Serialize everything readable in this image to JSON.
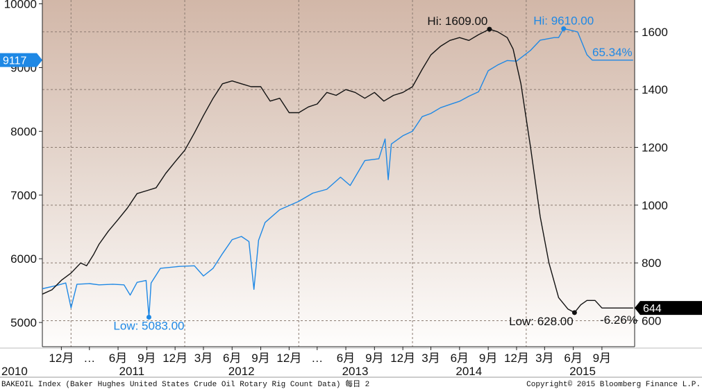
{
  "chart_data": {
    "type": "line",
    "title": "",
    "left_axis": {
      "range": [
        4620,
        10060
      ],
      "ticks": [
        5000,
        6000,
        7000,
        8000,
        9000,
        10000
      ]
    },
    "right_axis": {
      "range": [
        510,
        1710
      ],
      "ticks": [
        600,
        800,
        1000,
        1200,
        1400,
        1600
      ]
    },
    "x_range": [
      "2010-10-01",
      "2015-12-15"
    ],
    "x_month_labels": [
      {
        "date": "2010-12-01",
        "label": "12月"
      },
      {
        "date": "2011-03-01",
        "label": "…"
      },
      {
        "date": "2011-06-01",
        "label": "6月"
      },
      {
        "date": "2011-09-01",
        "label": "9月"
      },
      {
        "date": "2011-12-01",
        "label": "12月"
      },
      {
        "date": "2012-03-01",
        "label": "3月"
      },
      {
        "date": "2012-06-01",
        "label": "6月"
      },
      {
        "date": "2012-09-01",
        "label": "9月"
      },
      {
        "date": "2012-12-01",
        "label": "12月"
      },
      {
        "date": "2013-03-01",
        "label": "…"
      },
      {
        "date": "2013-06-01",
        "label": "6月"
      },
      {
        "date": "2013-09-01",
        "label": "9月"
      },
      {
        "date": "2013-12-01",
        "label": "12月"
      },
      {
        "date": "2014-03-01",
        "label": "3月"
      },
      {
        "date": "2014-06-01",
        "label": "6月"
      },
      {
        "date": "2014-09-01",
        "label": "9月"
      },
      {
        "date": "2014-12-01",
        "label": "12月"
      },
      {
        "date": "2015-03-01",
        "label": "3月"
      },
      {
        "date": "2015-06-01",
        "label": "6月"
      },
      {
        "date": "2015-09-01",
        "label": "9月"
      }
    ],
    "x_year_labels": [
      {
        "date": "2010-10-01",
        "label": "2010"
      },
      {
        "date": "2011-07-15",
        "label": "2011"
      },
      {
        "date": "2012-07-01",
        "label": "2012"
      },
      {
        "date": "2013-07-01",
        "label": "2013"
      },
      {
        "date": "2014-07-01",
        "label": "2014"
      },
      {
        "date": "2015-07-01",
        "label": "2015"
      }
    ],
    "grid": true,
    "series": [
      {
        "axis": "left",
        "color": "#1e88e5",
        "points": [
          [
            "2010-10-01",
            5530
          ],
          [
            "2010-11-15",
            5580
          ],
          [
            "2010-12-15",
            5620
          ],
          [
            "2011-01-01",
            5230
          ],
          [
            "2011-01-20",
            5600
          ],
          [
            "2011-03-01",
            5610
          ],
          [
            "2011-04-01",
            5590
          ],
          [
            "2011-05-15",
            5600
          ],
          [
            "2011-06-20",
            5590
          ],
          [
            "2011-07-10",
            5430
          ],
          [
            "2011-08-01",
            5630
          ],
          [
            "2011-08-30",
            5660
          ],
          [
            "2011-09-08",
            5083
          ],
          [
            "2011-09-15",
            5620
          ],
          [
            "2011-10-15",
            5850
          ],
          [
            "2011-12-15",
            5880
          ],
          [
            "2012-02-01",
            5890
          ],
          [
            "2012-03-01",
            5730
          ],
          [
            "2012-04-01",
            5850
          ],
          [
            "2012-05-01",
            6080
          ],
          [
            "2012-06-01",
            6300
          ],
          [
            "2012-07-01",
            6350
          ],
          [
            "2012-07-25",
            6270
          ],
          [
            "2012-08-10",
            5520
          ],
          [
            "2012-08-25",
            6290
          ],
          [
            "2012-09-15",
            6570
          ],
          [
            "2012-11-01",
            6770
          ],
          [
            "2013-01-01",
            6900
          ],
          [
            "2013-02-15",
            7030
          ],
          [
            "2013-04-01",
            7090
          ],
          [
            "2013-05-15",
            7280
          ],
          [
            "2013-06-15",
            7150
          ],
          [
            "2013-08-01",
            7540
          ],
          [
            "2013-09-15",
            7570
          ],
          [
            "2013-10-05",
            7880
          ],
          [
            "2013-10-15",
            7240
          ],
          [
            "2013-10-25",
            7800
          ],
          [
            "2013-12-01",
            7930
          ],
          [
            "2014-01-01",
            8000
          ],
          [
            "2014-02-01",
            8230
          ],
          [
            "2014-03-01",
            8280
          ],
          [
            "2014-04-01",
            8370
          ],
          [
            "2014-05-01",
            8420
          ],
          [
            "2014-06-01",
            8470
          ],
          [
            "2014-07-01",
            8550
          ],
          [
            "2014-08-01",
            8620
          ],
          [
            "2014-09-01",
            8950
          ],
          [
            "2014-10-01",
            9040
          ],
          [
            "2014-11-01",
            9110
          ],
          [
            "2014-12-01",
            9100
          ],
          [
            "2015-01-15",
            9270
          ],
          [
            "2015-02-15",
            9430
          ],
          [
            "2015-04-01",
            9470
          ],
          [
            "2015-04-15",
            9470
          ],
          [
            "2015-05-01",
            9610
          ],
          [
            "2015-05-20",
            9590
          ],
          [
            "2015-06-15",
            9560
          ],
          [
            "2015-07-15",
            9200
          ],
          [
            "2015-08-01",
            9117
          ],
          [
            "2015-12-10",
            9117
          ]
        ]
      },
      {
        "axis": "right",
        "color": "#111111",
        "points": [
          [
            "2010-10-01",
            692
          ],
          [
            "2010-11-01",
            707
          ],
          [
            "2010-12-01",
            740
          ],
          [
            "2011-01-01",
            765
          ],
          [
            "2011-02-01",
            800
          ],
          [
            "2011-02-20",
            790
          ],
          [
            "2011-03-15",
            830
          ],
          [
            "2011-04-01",
            865
          ],
          [
            "2011-05-01",
            910
          ],
          [
            "2011-06-01",
            950
          ],
          [
            "2011-07-01",
            990
          ],
          [
            "2011-08-01",
            1040
          ],
          [
            "2011-09-01",
            1050
          ],
          [
            "2011-10-01",
            1060
          ],
          [
            "2011-11-01",
            1110
          ],
          [
            "2011-12-01",
            1150
          ],
          [
            "2012-01-01",
            1190
          ],
          [
            "2012-02-01",
            1250
          ],
          [
            "2012-03-01",
            1310
          ],
          [
            "2012-04-01",
            1370
          ],
          [
            "2012-05-01",
            1420
          ],
          [
            "2012-06-01",
            1430
          ],
          [
            "2012-07-01",
            1420
          ],
          [
            "2012-08-01",
            1410
          ],
          [
            "2012-09-01",
            1410
          ],
          [
            "2012-10-01",
            1360
          ],
          [
            "2012-11-01",
            1370
          ],
          [
            "2012-12-01",
            1320
          ],
          [
            "2013-01-01",
            1320
          ],
          [
            "2013-02-01",
            1340
          ],
          [
            "2013-03-01",
            1350
          ],
          [
            "2013-04-01",
            1390
          ],
          [
            "2013-05-01",
            1380
          ],
          [
            "2013-06-01",
            1400
          ],
          [
            "2013-07-01",
            1390
          ],
          [
            "2013-08-01",
            1370
          ],
          [
            "2013-09-01",
            1390
          ],
          [
            "2013-10-01",
            1360
          ],
          [
            "2013-11-01",
            1380
          ],
          [
            "2013-12-01",
            1390
          ],
          [
            "2014-01-01",
            1410
          ],
          [
            "2014-02-01",
            1470
          ],
          [
            "2014-03-01",
            1520
          ],
          [
            "2014-04-01",
            1550
          ],
          [
            "2014-05-01",
            1570
          ],
          [
            "2014-06-01",
            1580
          ],
          [
            "2014-07-01",
            1570
          ],
          [
            "2014-08-01",
            1590
          ],
          [
            "2014-09-05",
            1609
          ],
          [
            "2014-10-01",
            1600
          ],
          [
            "2014-11-01",
            1580
          ],
          [
            "2014-11-20",
            1540
          ],
          [
            "2014-12-15",
            1420
          ],
          [
            "2015-01-15",
            1200
          ],
          [
            "2015-02-15",
            960
          ],
          [
            "2015-03-15",
            800
          ],
          [
            "2015-04-15",
            680
          ],
          [
            "2015-05-15",
            640
          ],
          [
            "2015-06-05",
            628
          ],
          [
            "2015-06-25",
            655
          ],
          [
            "2015-07-15",
            670
          ],
          [
            "2015-08-10",
            670
          ],
          [
            "2015-09-01",
            644
          ],
          [
            "2015-12-10",
            644
          ]
        ]
      }
    ],
    "annotations": [
      {
        "text": "Hi: 1609.00",
        "color": "black",
        "axis": "right",
        "date": "2014-09-05",
        "value": 1609
      },
      {
        "text": "Hi: 9610.00",
        "color": "blue",
        "axis": "left",
        "date": "2015-05-01",
        "value": 9610
      },
      {
        "text": "65.34%",
        "color": "blue"
      },
      {
        "text": "Low: 5083.00",
        "color": "blue",
        "axis": "left",
        "date": "2011-09-08",
        "value": 5083
      },
      {
        "text": "Low: 628.00",
        "color": "black",
        "axis": "right",
        "date": "2015-06-05",
        "value": 628
      },
      {
        "text": "-6.26%",
        "color": "black"
      }
    ],
    "last_value_tags": [
      {
        "text": "9117",
        "axis": "left",
        "value": 9117,
        "color": "#1e88e5"
      },
      {
        "text": "644",
        "axis": "right",
        "value": 644,
        "color": "#000000"
      }
    ],
    "footer_left": "BAKEOIL Index (Baker Hughes United States Crude Oil Rotary Rig Count Data)  每日 2",
    "footer_right": "Copyright© 2015 Bloomberg Finance L.P."
  }
}
